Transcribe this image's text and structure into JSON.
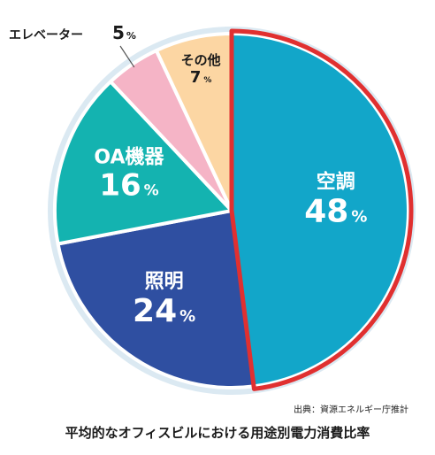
{
  "chart_data": {
    "type": "pie",
    "title": "平均的なオフィスビルにおける用途別電力消費比率",
    "source": "出典：資源エネルギー庁推計",
    "unit": "%",
    "slices": [
      {
        "name": "空調",
        "value": 48,
        "color": "#12a6c9",
        "label_color": "#ffffff"
      },
      {
        "name": "照明",
        "value": 24,
        "color": "#2f4fa1",
        "label_color": "#ffffff"
      },
      {
        "name": "OA機器",
        "value": 16,
        "color": "#14b3b0",
        "label_color": "#ffffff"
      },
      {
        "name": "エレベーター",
        "value": 5,
        "color": "#f5b4c6",
        "label_color": "#1a1a1a"
      },
      {
        "name": "その他",
        "value": 7,
        "color": "#fcd6a3",
        "label_color": "#1a1a1a"
      }
    ],
    "highlight_color": "#e03030",
    "background_ring_color": "#dbe9f2"
  }
}
